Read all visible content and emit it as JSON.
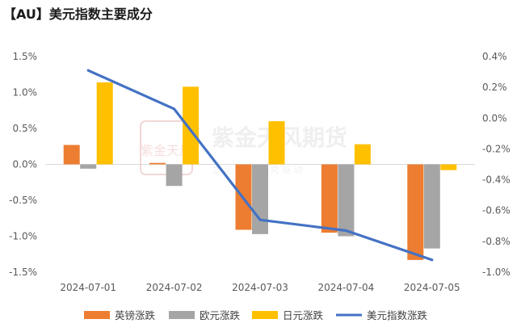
{
  "title": "【AU】美元指数主要成分",
  "watermark": {
    "name": "紫金天风期货",
    "sub": "立 足 产 业   研 究 驱 动",
    "seal_text": "紫金天风"
  },
  "chart_data": {
    "type": "bar",
    "categories": [
      "2024-07-01",
      "2024-07-02",
      "2024-07-03",
      "2024-07-04",
      "2024-07-05"
    ],
    "series": [
      {
        "name": "英镑涨跌",
        "type": "bar",
        "axis": "left",
        "color": "#ED7D31",
        "values": [
          0.27,
          0.02,
          -0.91,
          -0.95,
          -1.33
        ]
      },
      {
        "name": "欧元涨跌",
        "type": "bar",
        "axis": "left",
        "color": "#A5A5A5",
        "values": [
          -0.06,
          -0.3,
          -0.97,
          -1.0,
          -1.17
        ]
      },
      {
        "name": "日元涨跌",
        "type": "bar",
        "axis": "left",
        "color": "#FFC000",
        "values": [
          1.14,
          1.08,
          0.6,
          0.28,
          -0.08
        ]
      },
      {
        "name": "美元指数涨跌",
        "type": "line",
        "axis": "right",
        "color": "#4472C4",
        "values": [
          0.31,
          0.06,
          -0.66,
          -0.73,
          -0.92
        ]
      }
    ],
    "y_left": {
      "min": -1.5,
      "max": 1.5,
      "step": 0.5,
      "tick_labels": [
        "1.5%",
        "1.0%",
        "0.5%",
        "0.0%",
        "-0.5%",
        "-1.0%",
        "-1.5%"
      ]
    },
    "y_right": {
      "min": -1.0,
      "max": 0.4,
      "step": 0.2,
      "tick_labels": [
        "0.4%",
        "0.2%",
        "0.0%",
        "-0.2%",
        "-0.4%",
        "-0.6%",
        "-0.8%",
        "-1.0%"
      ]
    },
    "grid": false,
    "legend_position": "bottom"
  }
}
